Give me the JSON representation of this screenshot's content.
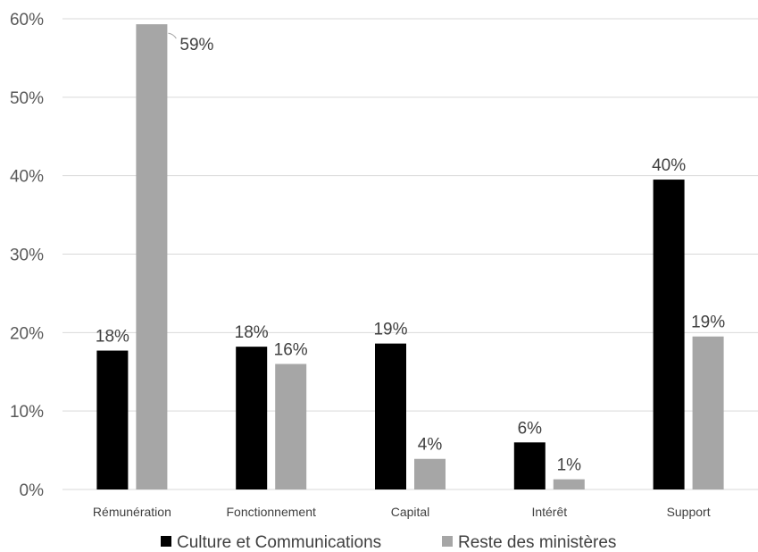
{
  "chart_data": {
    "type": "bar",
    "categories": [
      "Rémunération",
      "Fonctionnement",
      "Capital",
      "Intérêt",
      "Support"
    ],
    "series": [
      {
        "name": "Culture et Communications",
        "values": [
          0.177,
          0.182,
          0.186,
          0.06,
          0.395
        ],
        "labels": [
          "18%",
          "18%",
          "19%",
          "6%",
          "40%"
        ],
        "color": "#000000"
      },
      {
        "name": "Reste des ministères",
        "values": [
          0.593,
          0.16,
          0.039,
          0.013,
          0.195
        ],
        "labels": [
          "59%",
          "16%",
          "4%",
          "1%",
          "19%"
        ],
        "color": "#a6a6a6"
      }
    ],
    "yticks": [
      "0%",
      "10%",
      "20%",
      "30%",
      "40%",
      "50%",
      "60%"
    ],
    "ylim": [
      0,
      0.6
    ],
    "grid": true,
    "legend_position": "bottom",
    "gridline_color": "#d9d9d9"
  }
}
